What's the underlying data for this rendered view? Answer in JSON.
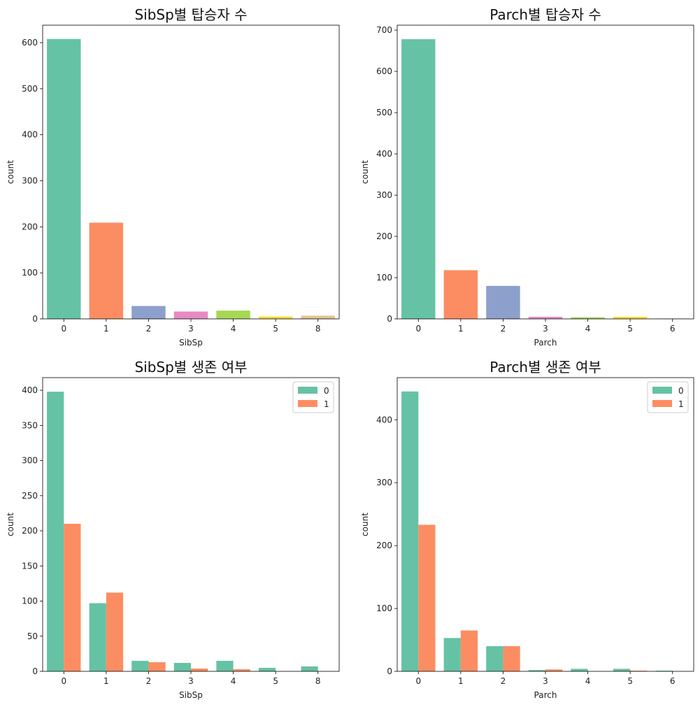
{
  "chart_data": [
    {
      "type": "bar",
      "title": "SibSp별 탑승자 수",
      "xlabel": "SibSp",
      "ylabel": "count",
      "categories": [
        "0",
        "1",
        "2",
        "3",
        "4",
        "5",
        "8"
      ],
      "values": [
        608,
        209,
        28,
        16,
        18,
        5,
        7
      ],
      "colors": [
        "#66c2a5",
        "#fc8d62",
        "#8da0cb",
        "#e78ac3",
        "#a6d854",
        "#ffd92f",
        "#e5c494"
      ],
      "ylim": [
        0,
        638
      ],
      "yticks": [
        0,
        100,
        200,
        300,
        400,
        500,
        600
      ],
      "legend": null
    },
    {
      "type": "bar",
      "title": "Parch별 탑승자 수",
      "xlabel": "Parch",
      "ylabel": "count",
      "categories": [
        "0",
        "1",
        "2",
        "3",
        "4",
        "5",
        "6"
      ],
      "values": [
        678,
        118,
        80,
        5,
        4,
        5,
        1
      ],
      "colors": [
        "#66c2a5",
        "#fc8d62",
        "#8da0cb",
        "#e78ac3",
        "#a6d854",
        "#ffd92f",
        "#e5c494"
      ],
      "ylim": [
        0,
        712
      ],
      "yticks": [
        0,
        100,
        200,
        300,
        400,
        500,
        600,
        700
      ],
      "legend": null
    },
    {
      "type": "bar",
      "title": "SibSp별 생존 여부",
      "xlabel": "SibSp",
      "ylabel": "count",
      "categories": [
        "0",
        "1",
        "2",
        "3",
        "4",
        "5",
        "8"
      ],
      "series": [
        {
          "name": "0",
          "values": [
            398,
            97,
            15,
            12,
            15,
            5,
            7
          ],
          "color": "#66c2a5"
        },
        {
          "name": "1",
          "values": [
            210,
            112,
            13,
            4,
            3,
            0,
            0
          ],
          "color": "#fc8d62"
        }
      ],
      "ylim": [
        0,
        418
      ],
      "yticks": [
        0,
        50,
        100,
        150,
        200,
        250,
        300,
        350,
        400
      ],
      "legend": "top-right"
    },
    {
      "type": "bar",
      "title": "Parch별 생존 여부",
      "xlabel": "Parch",
      "ylabel": "count",
      "categories": [
        "0",
        "1",
        "2",
        "3",
        "4",
        "5",
        "6"
      ],
      "series": [
        {
          "name": "0",
          "values": [
            445,
            53,
            40,
            2,
            4,
            4,
            1
          ],
          "color": "#66c2a5"
        },
        {
          "name": "1",
          "values": [
            233,
            65,
            40,
            3,
            0,
            1,
            0
          ],
          "color": "#fc8d62"
        }
      ],
      "ylim": [
        0,
        467
      ],
      "yticks": [
        0,
        100,
        200,
        300,
        400
      ],
      "legend": "top-right"
    }
  ]
}
